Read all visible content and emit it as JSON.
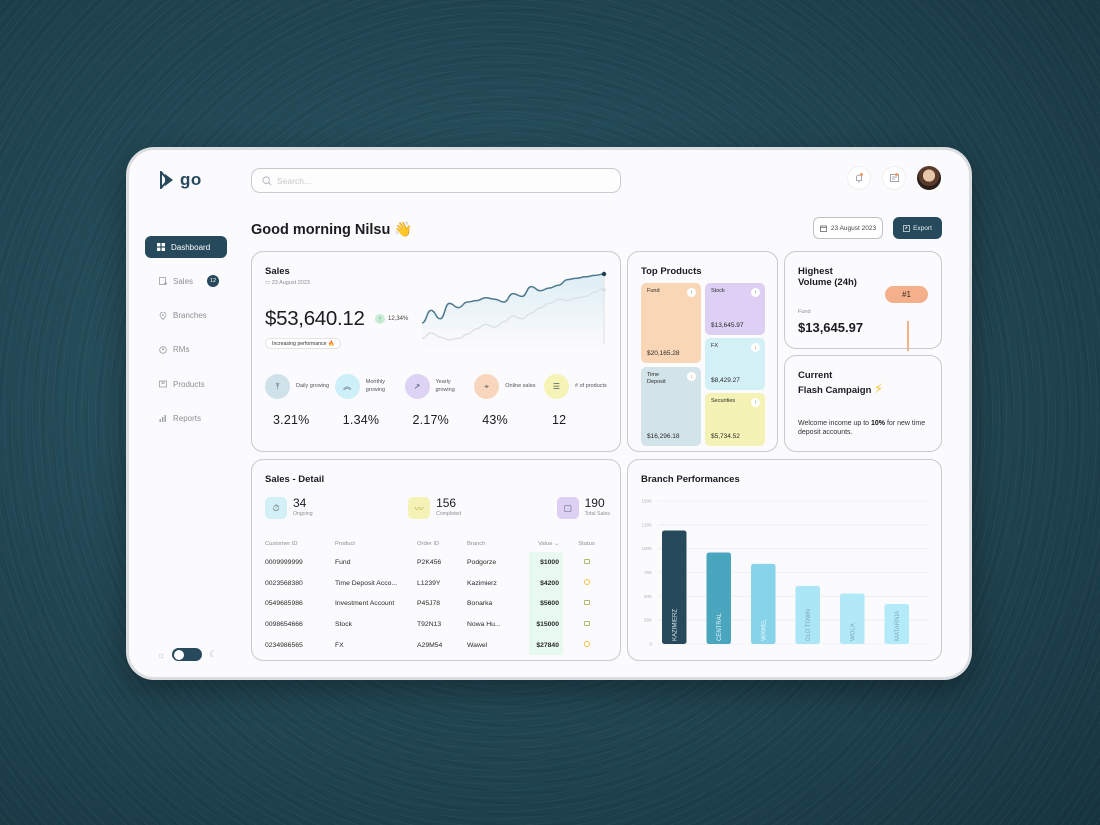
{
  "app": {
    "logo_text": "go"
  },
  "sidebar": {
    "items": [
      {
        "label": "Dashboard",
        "icon": "grid-icon",
        "active": true
      },
      {
        "label": "Sales",
        "icon": "receipt-icon",
        "badge": "12"
      },
      {
        "label": "Branches",
        "icon": "location-pin-icon"
      },
      {
        "label": "RMs",
        "icon": "people-icon"
      },
      {
        "label": "Products",
        "icon": "box-icon"
      },
      {
        "label": "Reports",
        "icon": "bar-chart-icon"
      }
    ],
    "theme_toggle": {
      "mode": "dark",
      "left_icon": "sun-icon",
      "right_icon": "moon-icon"
    }
  },
  "header": {
    "search_placeholder": "Search...",
    "notification_icon": "bell-icon",
    "messages_icon": "inbox-icon",
    "greeting": "Good morning Nilsu 👋",
    "date_button": "23 August 2023",
    "export_button": "Export"
  },
  "sales": {
    "title": "Sales",
    "date": "23 August 2023",
    "amount": "$53,640.12",
    "change": "12,34%",
    "pill": "Increasing performance 🔥",
    "stats": [
      {
        "label": "Daily growing",
        "value": "3.21%",
        "color": "#cfe2ea",
        "icon": "align-top-icon"
      },
      {
        "label": "Monthly growing",
        "value": "1.34%",
        "color": "#cdeff7",
        "icon": "chevrons-up-icon"
      },
      {
        "label": "Yearly growing",
        "value": "2.17%",
        "color": "#ddd3f4",
        "icon": "trend-up-icon"
      },
      {
        "label": "Online sales",
        "value": "43%",
        "color": "#f8d6bd",
        "icon": "cursor-click-icon"
      },
      {
        "label": "# of products",
        "value": "12",
        "color": "#f5f3b6",
        "icon": "list-icon"
      }
    ]
  },
  "top_products": {
    "title": "Top Products",
    "items": [
      {
        "name": "Fund",
        "value": "$20,165.28",
        "trend": "up",
        "color": "#f8d6b6"
      },
      {
        "name": "Stock",
        "value": "$13,645.97",
        "trend": "up",
        "color": "#ddd0f4"
      },
      {
        "name": "FX",
        "value": "$8,429.27",
        "trend": "down",
        "color": "#d3f0f7"
      },
      {
        "name": "Time Deposit",
        "value": "$16,296.18",
        "trend": "down",
        "color": "#d3e3ea"
      },
      {
        "name": "Securities",
        "value": "$5,734.52",
        "trend": "up",
        "color": "#f4f2b4"
      }
    ]
  },
  "highest_volume": {
    "title": "Highest Volume (24h)",
    "rank": "#1",
    "product": "Fund",
    "value": "$13,645.97"
  },
  "flash_campaign": {
    "title": "Current Flash Campaign",
    "text_before": "Welcome income up to ",
    "text_bold": "10%",
    "text_after": " for new time deposit accounts."
  },
  "sales_detail": {
    "title": "Sales - Detail",
    "kpis": [
      {
        "value": "34",
        "label": "Ongoing",
        "color": "#d3f0f7",
        "icon": "timer-icon"
      },
      {
        "value": "156",
        "label": "Completed",
        "color": "#f4f2b4",
        "icon": "check-squiggle-icon"
      },
      {
        "value": "190",
        "label": "Total Sales",
        "color": "#ddd0f4",
        "icon": "square-icon"
      }
    ],
    "columns": [
      "Customer ID",
      "Product",
      "Order ID",
      "Branch",
      "Value ⌄",
      "Status"
    ],
    "rows": [
      {
        "customer_id": "0009999999",
        "product": "Fund",
        "order_id": "P2K456",
        "branch": "Podgorze",
        "value": "$1000",
        "status": "completed"
      },
      {
        "customer_id": "0023568380",
        "product": "Time Deposit Acco...",
        "order_id": "L1239Y",
        "branch": "Kazimierz",
        "value": "$4200",
        "status": "pending"
      },
      {
        "customer_id": "0549685986",
        "product": "Investment Account",
        "order_id": "P45J78",
        "branch": "Bonarka",
        "value": "$5600",
        "status": "completed"
      },
      {
        "customer_id": "0098654666",
        "product": "Stock",
        "order_id": "T92N13",
        "branch": "Nowa Hu...",
        "value": "$15000",
        "status": "completed"
      },
      {
        "customer_id": "0234986565",
        "product": "FX",
        "order_id": "A29M54",
        "branch": "Wawel",
        "value": "$27840",
        "status": "pending"
      }
    ]
  },
  "chart_data": [
    {
      "type": "line",
      "title": "Sales",
      "x": [
        0,
        1,
        2,
        3,
        4,
        5,
        6,
        7,
        8,
        9,
        10,
        11,
        12,
        13,
        14,
        15,
        16,
        17,
        18,
        19,
        20
      ],
      "series": [
        {
          "name": "current",
          "color": "#4e7a90",
          "values": [
            30,
            48,
            36,
            58,
            52,
            60,
            62,
            66,
            64,
            60,
            72,
            68,
            82,
            76,
            80,
            84,
            92,
            94,
            96,
            98,
            100
          ]
        },
        {
          "name": "previous",
          "color": "#dcdfe3",
          "values": [
            8,
            16,
            10,
            6,
            8,
            14,
            22,
            28,
            24,
            32,
            40,
            36,
            44,
            52,
            58,
            64,
            62,
            66,
            68,
            74,
            80
          ]
        }
      ],
      "xlabel": "",
      "ylabel": "",
      "grid": false
    },
    {
      "type": "bar",
      "title": "Branch Performances",
      "categories": [
        "KAZIMIERZ",
        "CENTRAL",
        "WAWEL",
        "OLD TOWN",
        "WOLA",
        "MATARNIA"
      ],
      "values": [
        119000,
        96000,
        84000,
        61000,
        53000,
        42000
      ],
      "colors": [
        "#264a5c",
        "#4aa6be",
        "#86d3ea",
        "#abe6f6",
        "#b1e9f8",
        "#b4ebf9"
      ],
      "y_ticks": [
        "0",
        "25K",
        "50K",
        "75K",
        "100K",
        "125K",
        "150K"
      ],
      "ylim": [
        0,
        150000
      ],
      "grid": true,
      "legend": "none"
    }
  ]
}
